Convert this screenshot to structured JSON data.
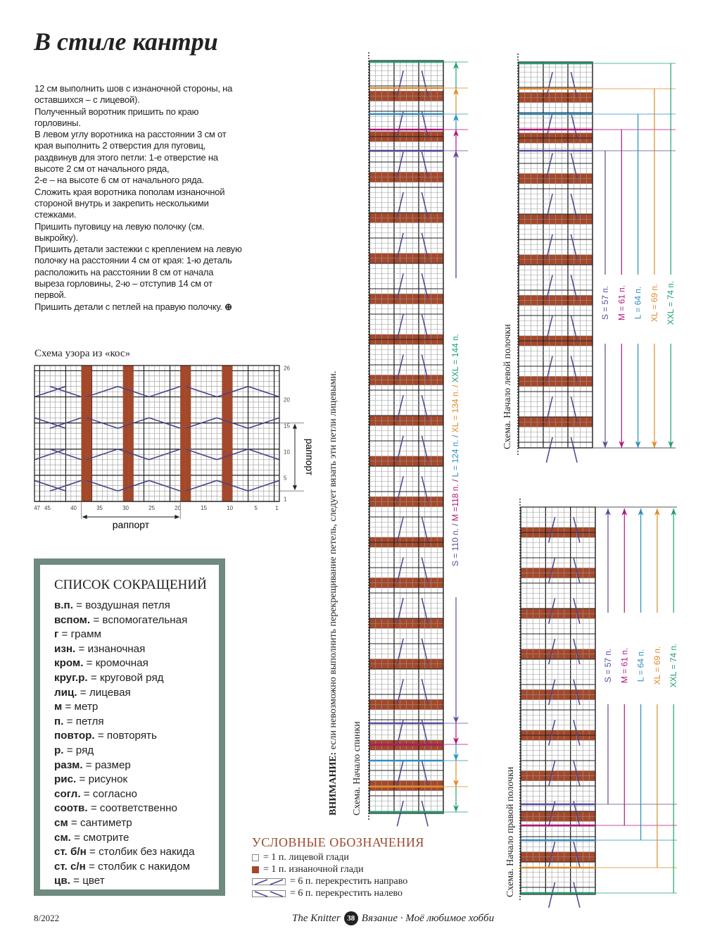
{
  "title": "В стиле кантри",
  "body_paragraphs": [
    "12 см выполнить шов с изнаночной стороны, на оставшихся – с лицевой).",
    "Полученный воротник пришить по краю горловины.",
    "В левом углу воротника на расстоянии 3 см от края выполнить 2 отверстия для пуговиц, раздвинув для этого петли: 1-е отверстие на высоте 2 см от начального ряда,",
    "2-е – на высоте 6 см от начального ряда.",
    "Сложить края воротника пополам изнаночной стороной внутрь и закрепить несколькими стежками.",
    "Пришить пуговицу на левую полочку (см. выкройку).",
    "Пришить детали застежки с креплением на левую полочку на расстоянии 4 см от края: 1-ю деталь расположить на расстоянии 8 см от начала выреза горловины, 2-ю – отступив 14 см от первой.",
    "Пришить детали с петлей на правую полочку."
  ],
  "end_mark_icon": "circle-plus-icon",
  "cable_chart": {
    "title": "Схема узора из «кос»",
    "columns": 47,
    "rows": 26,
    "x_ticks": [
      "47",
      "45",
      "40",
      "35",
      "30",
      "25",
      "20",
      "15",
      "10",
      "5",
      "1"
    ],
    "y_ticks": [
      "1",
      "5",
      "10",
      "15",
      "20",
      "26"
    ],
    "purl_stitches": [
      10,
      11,
      18,
      19,
      29,
      30,
      37,
      38
    ],
    "repeat_h_label": "раппорт",
    "repeat_h_range": [
      20,
      39
    ],
    "repeat_v_label": "раппорт",
    "repeat_v_range": [
      3,
      15
    ]
  },
  "abbreviations": {
    "title": "СПИСОК СОКРАЩЕНИЙ",
    "items": [
      {
        "abbr": "в.п.",
        "full": "воздушная петля"
      },
      {
        "abbr": "вспом.",
        "full": "вспомогательная"
      },
      {
        "abbr": "г",
        "full": "грамм"
      },
      {
        "abbr": "изн.",
        "full": "изнаночная"
      },
      {
        "abbr": "кром.",
        "full": "кромочная"
      },
      {
        "abbr": "круг.р.",
        "full": "круговой ряд"
      },
      {
        "abbr": "лиц.",
        "full": "лицевая"
      },
      {
        "abbr": "м",
        "full": "метр"
      },
      {
        "abbr": "п.",
        "full": "петля"
      },
      {
        "abbr": "повтор.",
        "full": "повторять"
      },
      {
        "abbr": "р.",
        "full": "ряд"
      },
      {
        "abbr": "разм.",
        "full": "размер"
      },
      {
        "abbr": "рис.",
        "full": "рисунок"
      },
      {
        "abbr": "согл.",
        "full": "согласно"
      },
      {
        "abbr": "соотв.",
        "full": "соответственно"
      },
      {
        "abbr": "см",
        "full": "сантиметр"
      },
      {
        "abbr": "см.",
        "full": "смотрите"
      },
      {
        "abbr": "ст. б/н",
        "full": "столбик без накида"
      },
      {
        "abbr": "ст. с/н",
        "full": "столбик с накидом"
      },
      {
        "abbr": "цв.",
        "full": "цвет"
      }
    ]
  },
  "notice": {
    "bold": "ВНИМАНИЕ:",
    "text": " если невозможно выполнить перекрещивание петель, следует вязать эти петли лицевыми."
  },
  "back_chart": {
    "label": "Схема. Начало спинки",
    "sizes": [
      {
        "text": "S = 110 п. / ",
        "color": "#5b4a9a"
      },
      {
        "text": "M =118 п. / ",
        "color": "#b0177a"
      },
      {
        "text": "L = 124 п. / ",
        "color": "#2a8fc0"
      },
      {
        "text": "XL = 134 п. / ",
        "color": "#e08a2a"
      },
      {
        "text": "XXL = 144 п.",
        "color": "#1fa070"
      }
    ]
  },
  "left_front_chart": {
    "label": "Схема. Начало левой полочки",
    "sizes": [
      {
        "text": "S = 57 п.",
        "color": "#5b4a9a"
      },
      {
        "text": "M = 61 п.",
        "color": "#b0177a"
      },
      {
        "text": "L = 64 п.",
        "color": "#2a8fc0"
      },
      {
        "text": "XL = 69 п.",
        "color": "#e08a2a"
      },
      {
        "text": "XXL = 74 п.",
        "color": "#1fa070"
      }
    ]
  },
  "right_front_chart": {
    "label": "Схема. Начало правой полочки",
    "sizes": [
      {
        "text": "S = 57 п.",
        "color": "#5b4a9a"
      },
      {
        "text": "M = 61 п.",
        "color": "#b0177a"
      },
      {
        "text": "L = 64 п.",
        "color": "#2a8fc0"
      },
      {
        "text": "XL = 69 п.",
        "color": "#e08a2a"
      },
      {
        "text": "XXL = 74 п.",
        "color": "#1fa070"
      }
    ]
  },
  "legend": {
    "title": "УСЛОВНЫЕ ОБОЗНАЧЕНИЯ",
    "items": [
      {
        "symbol": "knit-square-icon",
        "text": "= 1 п. лицевой глади"
      },
      {
        "symbol": "purl-square-icon",
        "text": "= 1 п. изнаночной глади"
      },
      {
        "symbol": "cable-right-icon",
        "text": "= 6 п. перекрестить направо"
      },
      {
        "symbol": "cable-left-icon",
        "text": "= 6 п. перекрестить налево"
      }
    ]
  },
  "colors": {
    "purl": "#a5482a",
    "cable": "#4a4588",
    "frame": "#6f8a7f",
    "legend_title": "#9a4a2e"
  },
  "footer": {
    "date": "8/2022",
    "brand": "The Knitter",
    "page": "38",
    "magazine": "Вязание · Моё любимое хобби"
  }
}
